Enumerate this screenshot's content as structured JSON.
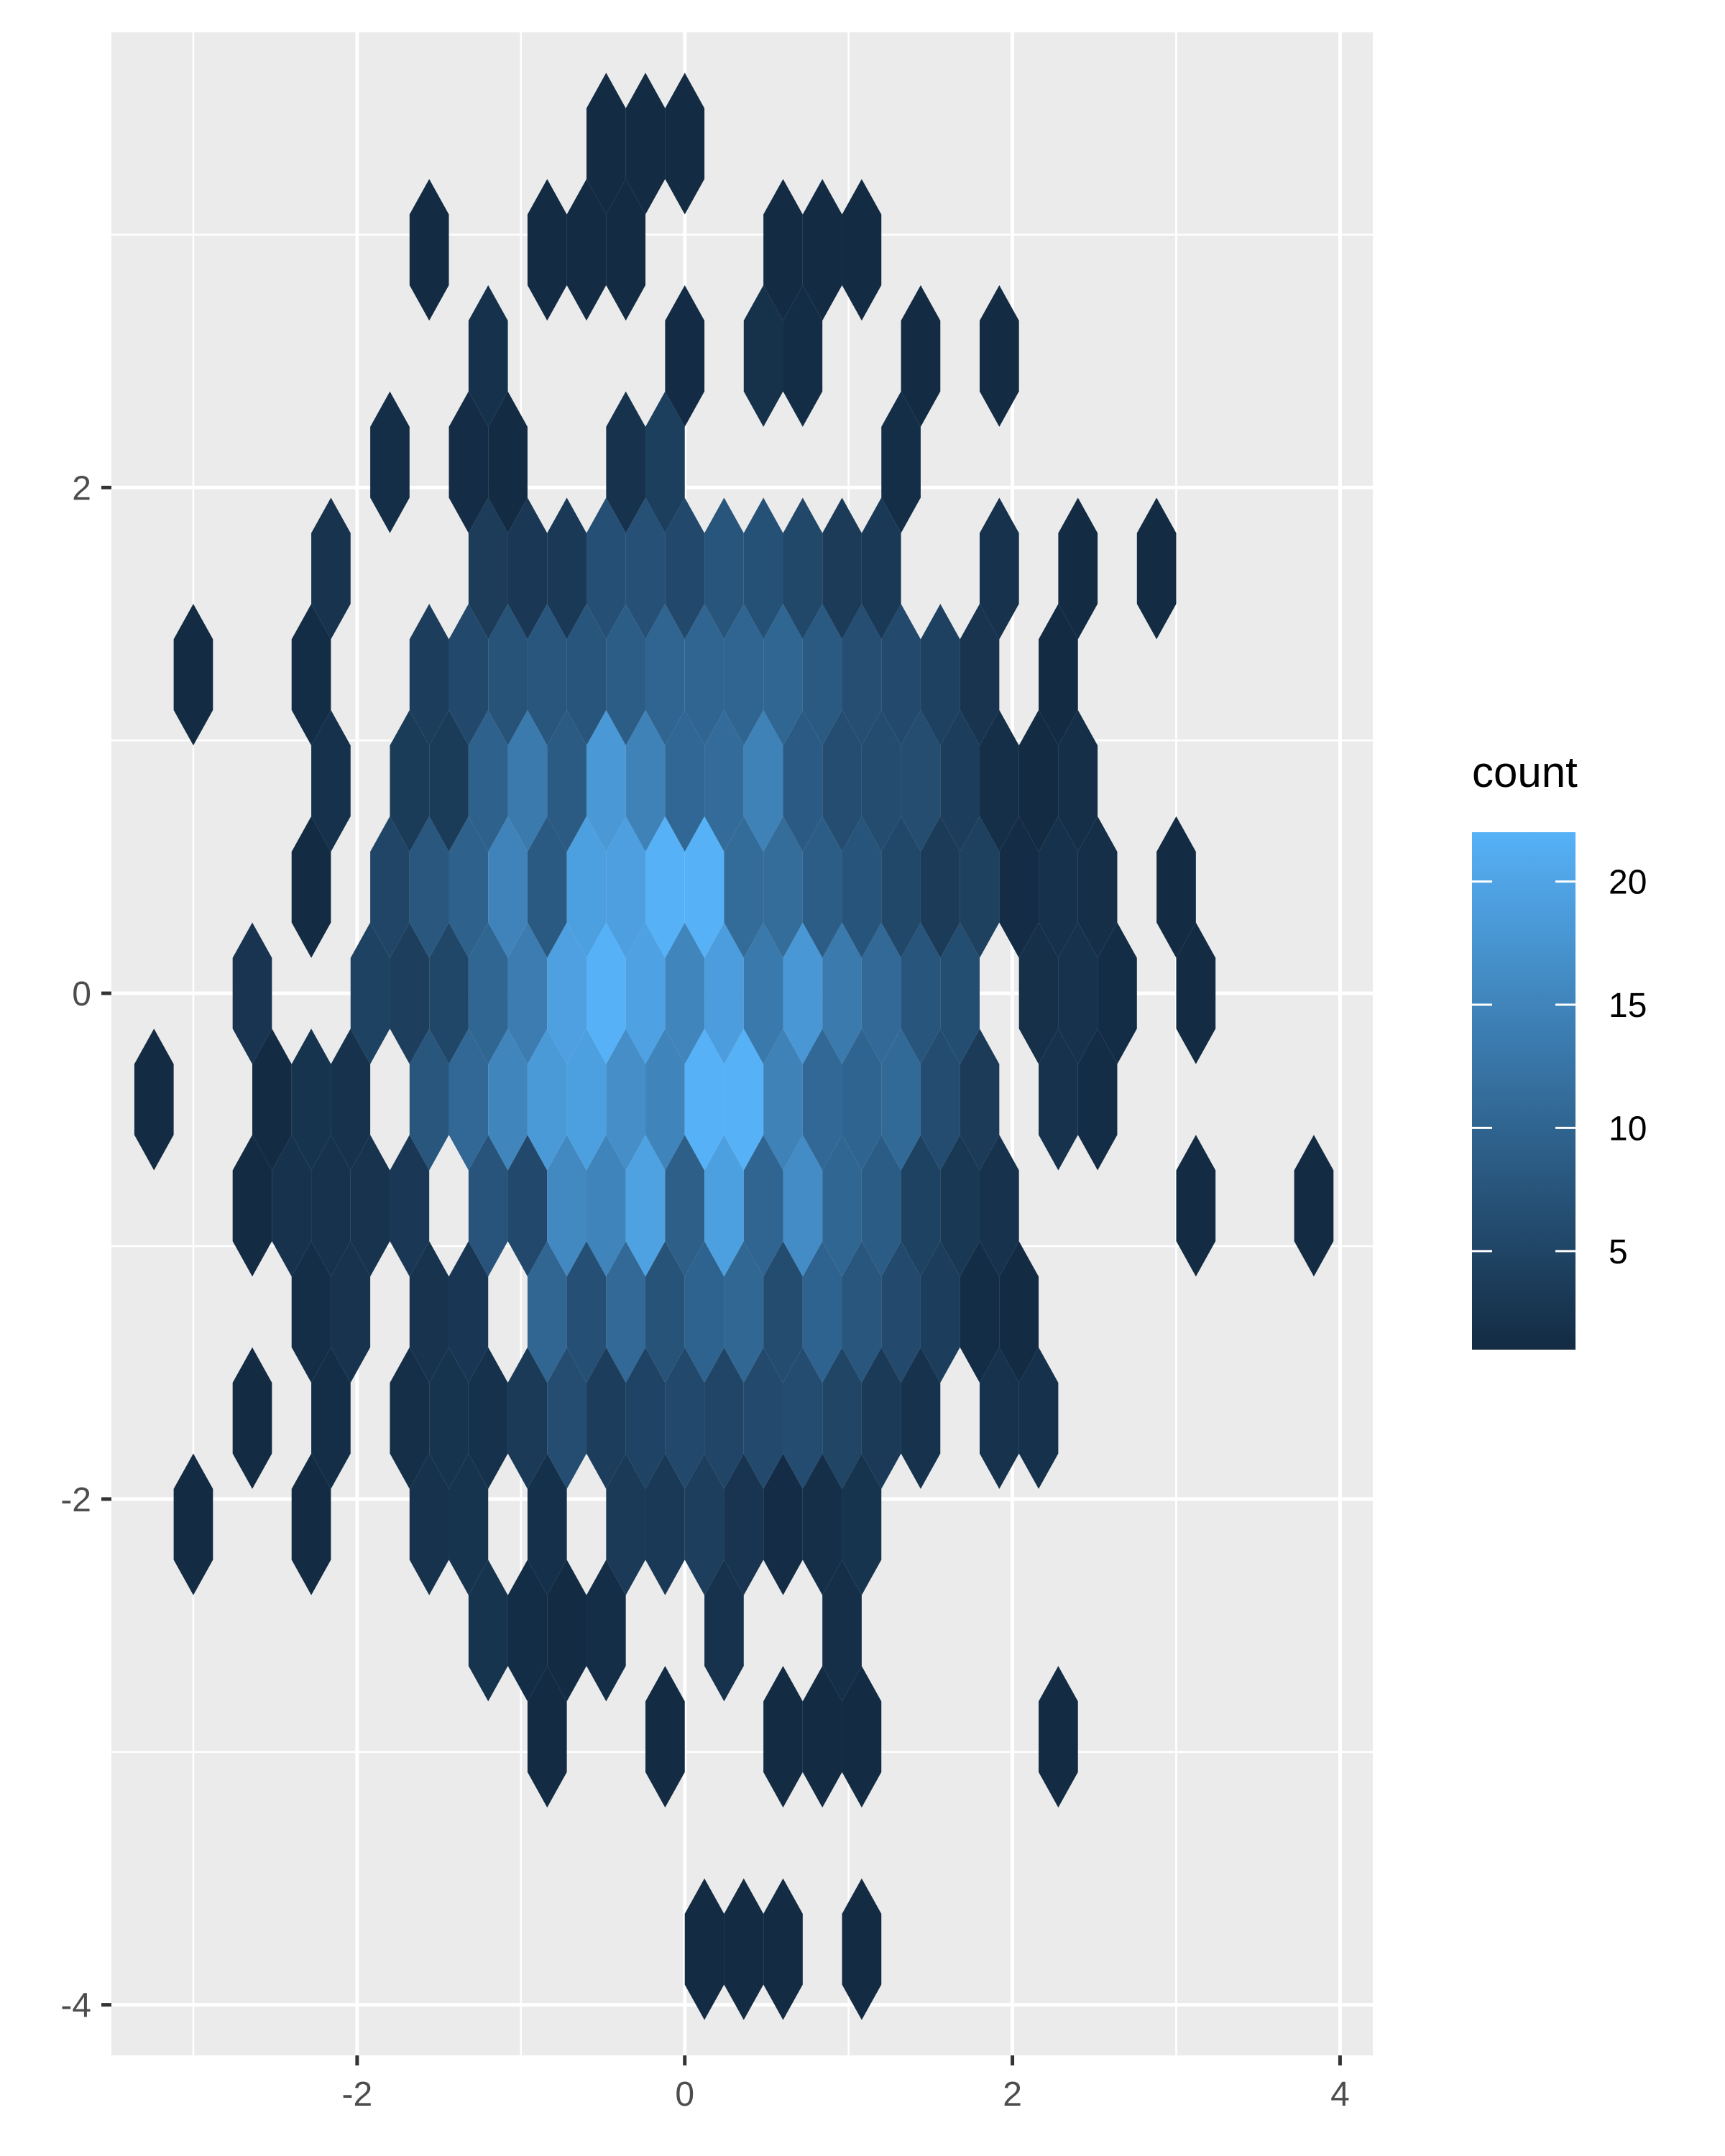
{
  "chart_data": {
    "type": "hexbin",
    "title": "",
    "xlabel": "",
    "ylabel": "",
    "xlim": [
      -3.5,
      4.2
    ],
    "ylim": [
      -4.2,
      3.8
    ],
    "x_ticks": [
      -2,
      0,
      2,
      4
    ],
    "y_ticks": [
      -4,
      -2,
      0,
      2
    ],
    "x_tick_labels": [
      "-2",
      "0",
      "2",
      "4"
    ],
    "y_tick_labels": [
      "-4",
      "-2",
      "0",
      "2"
    ],
    "grid": true,
    "legend": {
      "title": "count",
      "placement": "right",
      "min": 1,
      "max": 22,
      "ticks": [
        5,
        10,
        15,
        20
      ],
      "tick_labels": [
        "5",
        "10",
        "15",
        "20"
      ],
      "color_low": "#132B43",
      "color_high": "#56B1F7"
    },
    "colors": {
      "panel_background": "#EBEBEB",
      "grid_line": "#FFFFFF",
      "axis_text": "#4D4D4D",
      "tick_mark": "#333333"
    },
    "distribution": {
      "x_mean": 0.0,
      "y_mean": 0.0,
      "x_sd": 1.0,
      "y_sd": 1.0,
      "peak_count": 22
    },
    "isolated_points": [
      {
        "x": -0.35,
        "y": 3.5
      },
      {
        "x": -0.1,
        "y": 3.5
      },
      {
        "x": -0.8,
        "y": 3.05
      },
      {
        "x": -1.65,
        "y": 2.85
      },
      {
        "x": -0.5,
        "y": 2.85
      },
      {
        "x": 0.7,
        "y": 2.85
      },
      {
        "x": 0.95,
        "y": 2.85
      },
      {
        "x": 1.5,
        "y": 2.65
      },
      {
        "x": 2.0,
        "y": 2.65
      },
      {
        "x": 2.4,
        "y": 1.8
      },
      {
        "x": -2.95,
        "y": 1.4
      },
      {
        "x": 2.8,
        "y": 1.6
      },
      {
        "x": 3.05,
        "y": 0.35
      },
      {
        "x": 3.05,
        "y": -0.1
      },
      {
        "x": 3.15,
        "y": -0.75
      },
      {
        "x": 3.85,
        "y": -0.75
      },
      {
        "x": -3.15,
        "y": -0.3
      },
      {
        "x": -2.95,
        "y": -2.0
      },
      {
        "x": -2.25,
        "y": -2.0
      },
      {
        "x": -2.65,
        "y": -1.6
      },
      {
        "x": -2.65,
        "y": -0.95
      },
      {
        "x": 2.2,
        "y": -1.6
      },
      {
        "x": -0.75,
        "y": -2.65
      },
      {
        "x": -0.75,
        "y": -3.1
      },
      {
        "x": -0.1,
        "y": -2.9
      },
      {
        "x": 0.7,
        "y": -3.1
      },
      {
        "x": 1.15,
        "y": -3.1
      },
      {
        "x": 2.3,
        "y": -3.1
      },
      {
        "x": 0.6,
        "y": -3.7
      },
      {
        "x": 1.05,
        "y": -3.7
      },
      {
        "x": 0.25,
        "y": -3.9
      }
    ]
  }
}
